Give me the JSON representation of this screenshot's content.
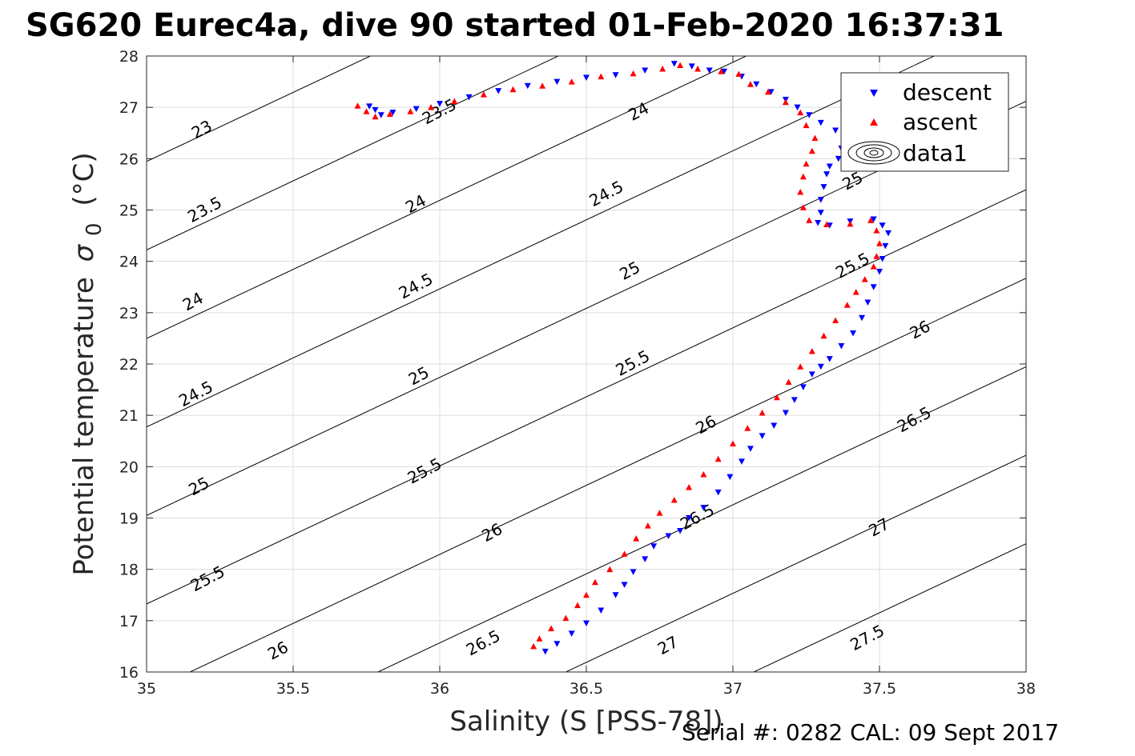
{
  "title": "SG620 Eurec4a, dive 90 started 01-Feb-2020 16:37:31",
  "footer": "Serial #: 0282  CAL: 09 Sept 2017",
  "chart_data": {
    "type": "scatter",
    "xlabel": "Salinity (S [PSS-78])",
    "ylabel": "Potential temperature",
    "ylabel_sub": "0",
    "ylabel_sigma": "σ",
    "ylabel_unit": "(°C)",
    "xlim": [
      35,
      38
    ],
    "ylim": [
      16,
      28
    ],
    "xticks": [
      35,
      35.5,
      36,
      36.5,
      37,
      37.5,
      38
    ],
    "xtick_labels": [
      "35",
      "35.5",
      "36",
      "36.5",
      "37",
      "37.5",
      "38"
    ],
    "yticks": [
      16,
      17,
      18,
      19,
      20,
      21,
      22,
      23,
      24,
      25,
      26,
      27,
      28
    ],
    "ytick_labels": [
      "16",
      "17",
      "18",
      "19",
      "20",
      "21",
      "22",
      "23",
      "24",
      "25",
      "26",
      "27",
      "28"
    ],
    "grid": true,
    "legend_position": "top-right",
    "legend": [
      {
        "label": "descent",
        "marker": "triangle-down",
        "color": "#0000ff"
      },
      {
        "label": "ascent",
        "marker": "triangle-up",
        "color": "#ff0000"
      },
      {
        "label": "data1",
        "marker": "contour",
        "color": "#000000"
      }
    ],
    "series": [
      {
        "name": "descent",
        "color": "#0000ff",
        "marker": "triangle-down",
        "points": [
          [
            36.36,
            16.4
          ],
          [
            36.4,
            16.55
          ],
          [
            36.45,
            16.75
          ],
          [
            36.5,
            16.95
          ],
          [
            36.55,
            17.2
          ],
          [
            36.6,
            17.5
          ],
          [
            36.63,
            17.7
          ],
          [
            36.66,
            17.95
          ],
          [
            36.7,
            18.2
          ],
          [
            36.73,
            18.45
          ],
          [
            36.78,
            18.65
          ],
          [
            36.82,
            18.75
          ],
          [
            36.85,
            19.0
          ],
          [
            36.9,
            19.2
          ],
          [
            36.95,
            19.5
          ],
          [
            36.99,
            19.8
          ],
          [
            37.03,
            20.1
          ],
          [
            37.06,
            20.35
          ],
          [
            37.1,
            20.6
          ],
          [
            37.14,
            20.8
          ],
          [
            37.18,
            21.05
          ],
          [
            37.21,
            21.3
          ],
          [
            37.24,
            21.55
          ],
          [
            37.27,
            21.8
          ],
          [
            37.3,
            21.95
          ],
          [
            37.33,
            22.1
          ],
          [
            37.37,
            22.35
          ],
          [
            37.41,
            22.6
          ],
          [
            37.44,
            22.9
          ],
          [
            37.46,
            23.2
          ],
          [
            37.48,
            23.5
          ],
          [
            37.5,
            23.8
          ],
          [
            37.51,
            24.05
          ],
          [
            37.52,
            24.3
          ],
          [
            37.53,
            24.55
          ],
          [
            37.51,
            24.7
          ],
          [
            37.48,
            24.82
          ],
          [
            37.4,
            24.78
          ],
          [
            37.33,
            24.7
          ],
          [
            37.29,
            24.75
          ],
          [
            37.3,
            24.95
          ],
          [
            37.3,
            25.2
          ],
          [
            37.31,
            25.45
          ],
          [
            37.32,
            25.7
          ],
          [
            37.33,
            25.85
          ],
          [
            37.36,
            26.0
          ],
          [
            37.37,
            26.2
          ],
          [
            37.38,
            26.4
          ],
          [
            37.35,
            26.55
          ],
          [
            37.3,
            26.7
          ],
          [
            37.26,
            26.85
          ],
          [
            37.22,
            27.0
          ],
          [
            37.18,
            27.15
          ],
          [
            37.13,
            27.3
          ],
          [
            37.08,
            27.45
          ],
          [
            37.03,
            27.6
          ],
          [
            36.97,
            27.7
          ],
          [
            36.92,
            27.72
          ],
          [
            36.86,
            27.8
          ],
          [
            36.8,
            27.85
          ],
          [
            36.7,
            27.72
          ],
          [
            36.6,
            27.63
          ],
          [
            36.5,
            27.58
          ],
          [
            36.4,
            27.5
          ],
          [
            36.3,
            27.42
          ],
          [
            36.2,
            27.32
          ],
          [
            36.1,
            27.2
          ],
          [
            36.0,
            27.07
          ],
          [
            35.92,
            26.97
          ],
          [
            35.84,
            26.9
          ],
          [
            35.8,
            26.85
          ],
          [
            35.78,
            26.95
          ],
          [
            35.76,
            27.02
          ]
        ]
      },
      {
        "name": "ascent",
        "color": "#ff0000",
        "marker": "triangle-up",
        "points": [
          [
            36.32,
            16.5
          ],
          [
            36.34,
            16.65
          ],
          [
            36.38,
            16.85
          ],
          [
            36.43,
            17.05
          ],
          [
            36.47,
            17.3
          ],
          [
            36.5,
            17.5
          ],
          [
            36.53,
            17.75
          ],
          [
            36.58,
            18.0
          ],
          [
            36.63,
            18.3
          ],
          [
            36.67,
            18.6
          ],
          [
            36.71,
            18.85
          ],
          [
            36.75,
            19.1
          ],
          [
            36.8,
            19.35
          ],
          [
            36.85,
            19.6
          ],
          [
            36.9,
            19.85
          ],
          [
            36.95,
            20.15
          ],
          [
            37.0,
            20.45
          ],
          [
            37.05,
            20.75
          ],
          [
            37.1,
            21.05
          ],
          [
            37.15,
            21.35
          ],
          [
            37.19,
            21.65
          ],
          [
            37.23,
            21.95
          ],
          [
            37.27,
            22.25
          ],
          [
            37.31,
            22.55
          ],
          [
            37.35,
            22.85
          ],
          [
            37.39,
            23.15
          ],
          [
            37.42,
            23.4
          ],
          [
            37.45,
            23.65
          ],
          [
            37.48,
            23.9
          ],
          [
            37.49,
            24.1
          ],
          [
            37.5,
            24.35
          ],
          [
            37.49,
            24.6
          ],
          [
            37.47,
            24.8
          ],
          [
            37.4,
            24.73
          ],
          [
            37.32,
            24.72
          ],
          [
            37.26,
            24.8
          ],
          [
            37.24,
            25.05
          ],
          [
            37.23,
            25.35
          ],
          [
            37.24,
            25.65
          ],
          [
            37.25,
            25.9
          ],
          [
            37.27,
            26.15
          ],
          [
            37.28,
            26.4
          ],
          [
            37.25,
            26.65
          ],
          [
            37.23,
            26.9
          ],
          [
            37.18,
            27.1
          ],
          [
            37.12,
            27.3
          ],
          [
            37.06,
            27.45
          ],
          [
            37.02,
            27.65
          ],
          [
            36.96,
            27.7
          ],
          [
            36.88,
            27.75
          ],
          [
            36.82,
            27.82
          ],
          [
            36.76,
            27.75
          ],
          [
            36.66,
            27.66
          ],
          [
            36.55,
            27.6
          ],
          [
            36.45,
            27.5
          ],
          [
            36.35,
            27.42
          ],
          [
            36.25,
            27.35
          ],
          [
            36.15,
            27.25
          ],
          [
            36.05,
            27.12
          ],
          [
            35.97,
            27.0
          ],
          [
            35.9,
            26.92
          ],
          [
            35.83,
            26.87
          ],
          [
            35.78,
            26.82
          ],
          [
            35.75,
            26.92
          ],
          [
            35.72,
            27.03
          ]
        ]
      }
    ],
    "contour_levels": [
      23,
      23.5,
      24,
      24.5,
      25,
      25.5,
      26,
      26.5,
      27,
      27.5
    ],
    "contour_labels": [
      {
        "text": "23",
        "x": 35.19,
        "y": 26.55
      },
      {
        "text": "23.5",
        "x": 36.0,
        "y": 26.9
      },
      {
        "text": "23.5",
        "x": 35.2,
        "y": 24.99
      },
      {
        "text": "24",
        "x": 36.68,
        "y": 26.9
      },
      {
        "text": "24",
        "x": 35.92,
        "y": 25.1
      },
      {
        "text": "24",
        "x": 35.16,
        "y": 23.2
      },
      {
        "text": "24.5",
        "x": 36.57,
        "y": 25.3
      },
      {
        "text": "24.5",
        "x": 35.92,
        "y": 23.5
      },
      {
        "text": "24.5",
        "x": 35.17,
        "y": 21.4
      },
      {
        "text": "25",
        "x": 37.41,
        "y": 25.55
      },
      {
        "text": "25",
        "x": 36.65,
        "y": 23.8
      },
      {
        "text": "25",
        "x": 35.93,
        "y": 21.75
      },
      {
        "text": "25",
        "x": 35.18,
        "y": 19.6
      },
      {
        "text": "25.5",
        "x": 37.41,
        "y": 23.9
      },
      {
        "text": "25.5",
        "x": 36.66,
        "y": 22.0
      },
      {
        "text": "25.5",
        "x": 35.95,
        "y": 19.9
      },
      {
        "text": "25.5",
        "x": 35.21,
        "y": 17.8
      },
      {
        "text": "26",
        "x": 37.64,
        "y": 22.65
      },
      {
        "text": "26",
        "x": 36.91,
        "y": 20.8
      },
      {
        "text": "26",
        "x": 36.18,
        "y": 18.7
      },
      {
        "text": "26",
        "x": 35.45,
        "y": 16.4
      },
      {
        "text": "26.5",
        "x": 37.62,
        "y": 20.9
      },
      {
        "text": "26.5",
        "x": 36.88,
        "y": 19.0
      },
      {
        "text": "26.5",
        "x": 36.15,
        "y": 16.55
      },
      {
        "text": "27",
        "x": 37.5,
        "y": 18.8
      },
      {
        "text": "27",
        "x": 36.78,
        "y": 16.5
      },
      {
        "text": "27.5",
        "x": 37.46,
        "y": 16.65
      }
    ]
  }
}
